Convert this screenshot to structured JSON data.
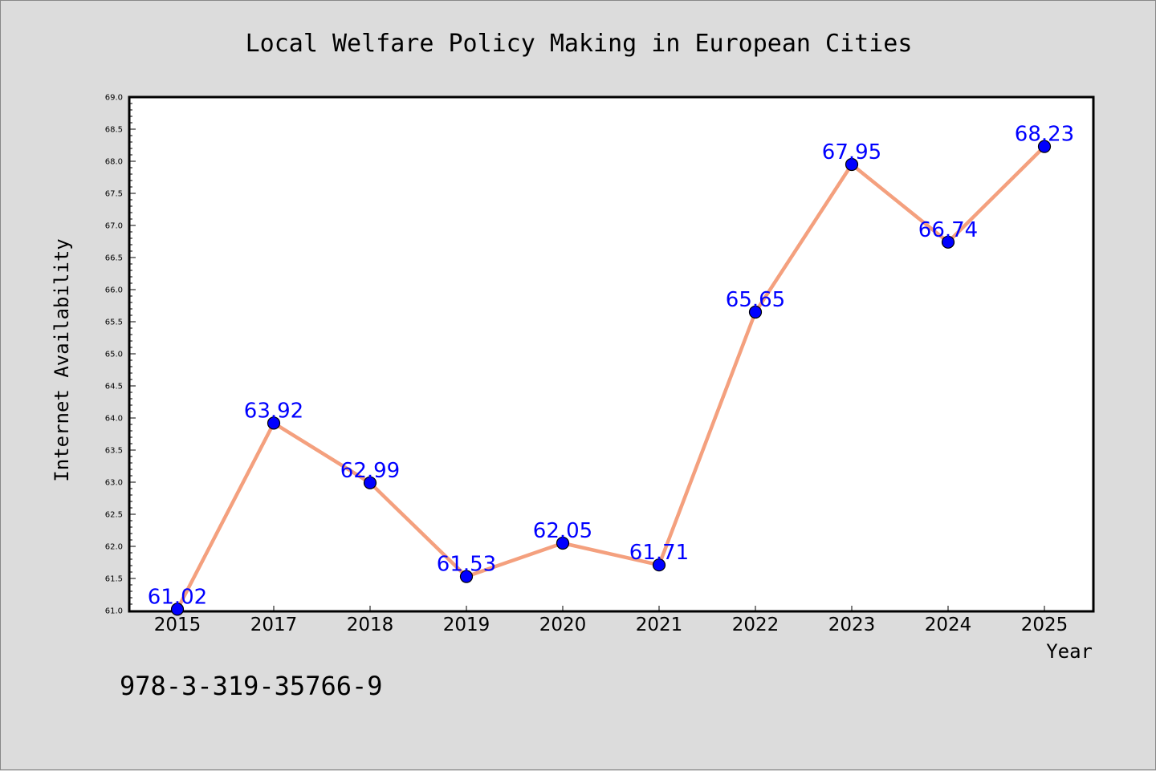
{
  "chart_data": {
    "type": "line",
    "title": "Local Welfare Policy Making in European Cities",
    "xlabel": "Year",
    "ylabel": "Internet Availability",
    "categories": [
      "2015",
      "2017",
      "2018",
      "2019",
      "2020",
      "2021",
      "2022",
      "2023",
      "2024",
      "2025"
    ],
    "values": [
      61.02,
      63.92,
      62.99,
      61.53,
      62.05,
      61.71,
      65.65,
      67.95,
      66.74,
      68.23
    ],
    "data_labels": [
      "61.02",
      "63.92",
      "62.99",
      "61.53",
      "62.05",
      "61.71",
      "65.65",
      "67.95",
      "66.74",
      "68.23"
    ],
    "ylim": [
      61.0,
      69.0
    ],
    "yticks": [
      "61.0",
      "61.5",
      "62.0",
      "62.5",
      "63.0",
      "63.5",
      "64.0",
      "64.5",
      "65.0",
      "65.5",
      "66.0",
      "66.5",
      "67.0",
      "67.5",
      "68.0",
      "68.5",
      "69.0"
    ],
    "grid": false,
    "legend": "none",
    "colors": {
      "line": "#f4a07e",
      "marker": "#0000ff",
      "data_label": "#0000ff",
      "background": "#dcdcdc",
      "plot_area": "#ffffff"
    }
  },
  "footer": {
    "code": "978-3-319-35766-9"
  }
}
